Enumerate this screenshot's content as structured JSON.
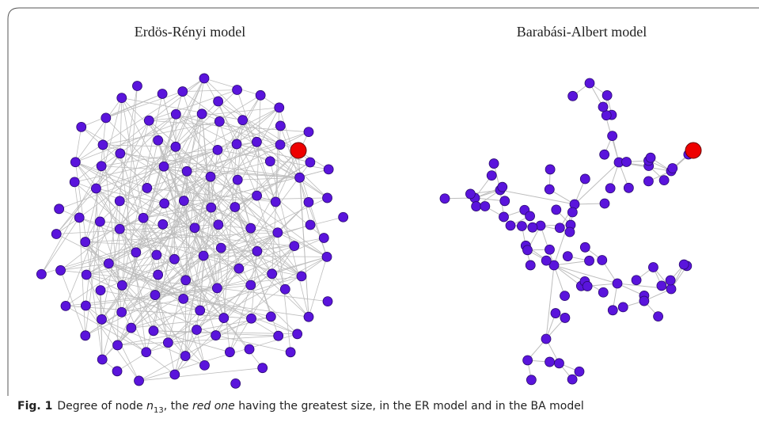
{
  "figure": {
    "panels": [
      {
        "title": "Erdös-Rényi model"
      },
      {
        "title": "Barabási-Albert model"
      }
    ],
    "caption": {
      "label": "Fig. 1",
      "before": "Degree of node ",
      "symbol": "n",
      "subscript": "13",
      "middle": ", the ",
      "emphasis": "red one",
      "after": " having the greatest size, in the ER model and in the BA model"
    }
  }
}
